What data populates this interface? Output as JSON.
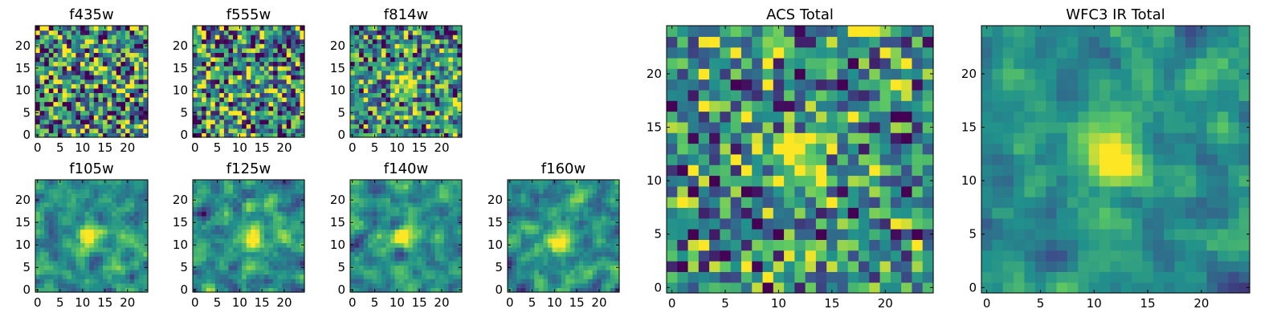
{
  "colormap": [
    "#440154",
    "#3b528b",
    "#21918c",
    "#5ec962",
    "#fde725"
  ],
  "chart_data": [
    {
      "type": "heatmap",
      "title": "f435w",
      "grid": [
        25,
        25
      ],
      "xticks": [
        0,
        5,
        10,
        15,
        20
      ],
      "yticks": [
        0,
        5,
        10,
        15,
        20
      ],
      "xlim": [
        0,
        24
      ],
      "ylim": [
        0,
        24
      ],
      "source_peak": [
        12,
        12
      ],
      "source_strength": 0.0,
      "noise_level": 1.0,
      "smooth": 0,
      "seed": 11
    },
    {
      "type": "heatmap",
      "title": "f555w",
      "grid": [
        25,
        25
      ],
      "xticks": [
        0,
        5,
        10,
        15,
        20
      ],
      "yticks": [
        0,
        5,
        10,
        15,
        20
      ],
      "xlim": [
        0,
        24
      ],
      "ylim": [
        0,
        24
      ],
      "source_peak": [
        12,
        12
      ],
      "source_strength": 0.1,
      "noise_level": 1.0,
      "smooth": 0,
      "seed": 23
    },
    {
      "type": "heatmap",
      "title": "f814w",
      "grid": [
        25,
        25
      ],
      "xticks": [
        0,
        5,
        10,
        15,
        20
      ],
      "yticks": [
        0,
        5,
        10,
        15,
        20
      ],
      "xlim": [
        0,
        24
      ],
      "ylim": [
        0,
        24
      ],
      "source_peak": [
        12,
        12
      ],
      "source_strength": 0.8,
      "noise_level": 0.8,
      "smooth": 0,
      "seed": 37
    },
    {
      "type": "heatmap",
      "title": "f105w",
      "grid": [
        25,
        25
      ],
      "xticks": [
        0,
        5,
        10,
        15,
        20
      ],
      "yticks": [
        0,
        5,
        10,
        15,
        20
      ],
      "xlim": [
        0,
        24
      ],
      "ylim": [
        0,
        24
      ],
      "source_peak": [
        12,
        12
      ],
      "source_strength": 0.9,
      "noise_level": 0.9,
      "smooth": 1,
      "seed": 41
    },
    {
      "type": "heatmap",
      "title": "f125w",
      "grid": [
        25,
        25
      ],
      "xticks": [
        0,
        5,
        10,
        15,
        20
      ],
      "yticks": [
        0,
        5,
        10,
        15,
        20
      ],
      "xlim": [
        0,
        24
      ],
      "ylim": [
        0,
        24
      ],
      "source_peak": [
        13,
        11
      ],
      "source_strength": 0.9,
      "noise_level": 0.9,
      "smooth": 1,
      "seed": 53
    },
    {
      "type": "heatmap",
      "title": "f140w",
      "grid": [
        25,
        25
      ],
      "xticks": [
        0,
        5,
        10,
        15,
        20
      ],
      "yticks": [
        0,
        5,
        10,
        15,
        20
      ],
      "xlim": [
        0,
        24
      ],
      "ylim": [
        0,
        24
      ],
      "source_peak": [
        11,
        12
      ],
      "source_strength": 0.8,
      "noise_level": 0.9,
      "smooth": 1,
      "seed": 67
    },
    {
      "type": "heatmap",
      "title": "f160w",
      "grid": [
        25,
        25
      ],
      "xticks": [
        0,
        5,
        10,
        15,
        20
      ],
      "yticks": [
        0,
        5,
        10,
        15,
        20
      ],
      "xlim": [
        0,
        24
      ],
      "ylim": [
        0,
        24
      ],
      "source_peak": [
        11,
        11
      ],
      "source_strength": 0.9,
      "noise_level": 0.9,
      "smooth": 1,
      "seed": 79
    },
    {
      "type": "heatmap",
      "title": "ACS Total",
      "grid": [
        25,
        25
      ],
      "xticks": [
        0,
        5,
        10,
        15,
        20
      ],
      "yticks": [
        0,
        5,
        10,
        15,
        20
      ],
      "xlim": [
        0,
        24
      ],
      "ylim": [
        0,
        24
      ],
      "source_peak": [
        12,
        12
      ],
      "source_strength": 1.0,
      "noise_level": 0.75,
      "smooth": 0,
      "seed": 97
    },
    {
      "type": "heatmap",
      "title": "WFC3 IR Total",
      "grid": [
        25,
        25
      ],
      "xticks": [
        0,
        5,
        10,
        15,
        20
      ],
      "yticks": [
        0,
        5,
        10,
        15,
        20
      ],
      "xlim": [
        0,
        24
      ],
      "ylim": [
        0,
        24
      ],
      "source_peak": [
        12,
        12
      ],
      "source_strength": 1.0,
      "noise_level": 0.7,
      "smooth": 1,
      "seed": 113
    }
  ]
}
